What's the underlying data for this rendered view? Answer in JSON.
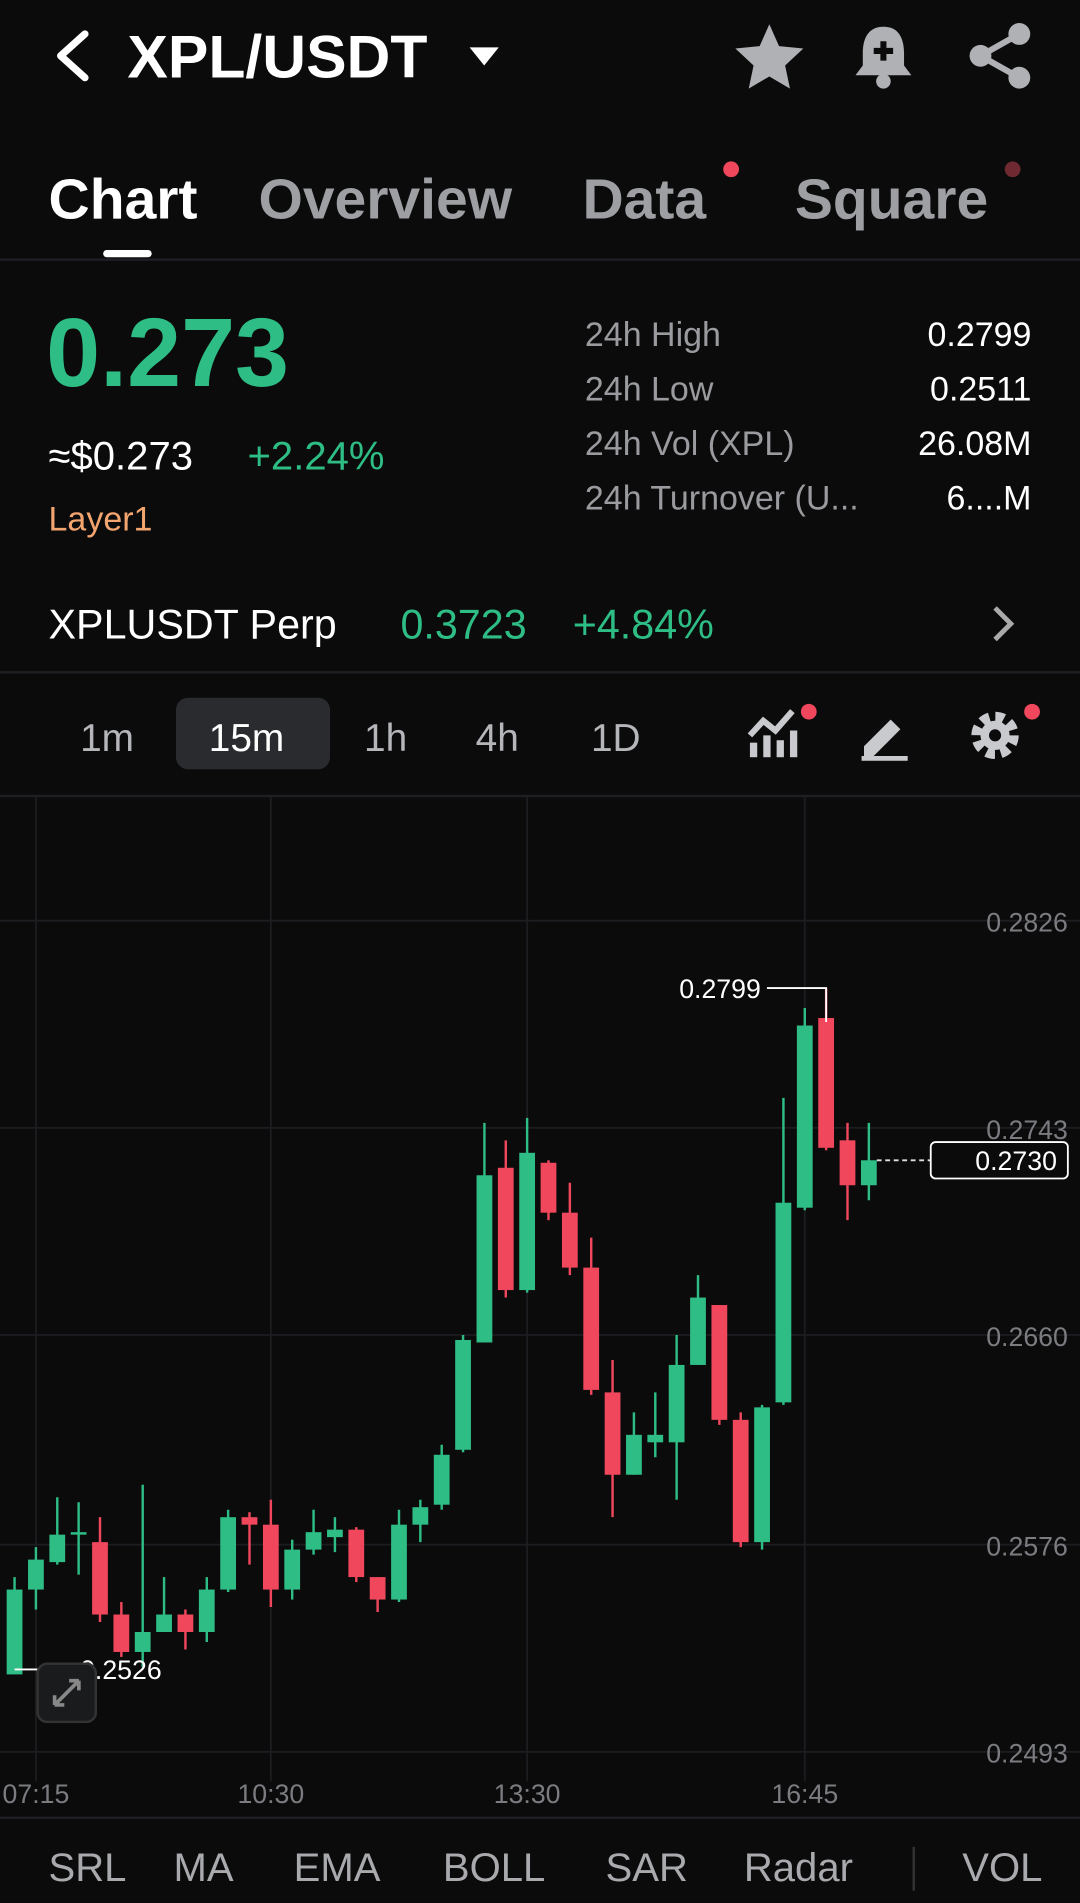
{
  "header": {
    "title": "XPL/USDT"
  },
  "tabs": [
    "Chart",
    "Overview",
    "Data",
    "Square"
  ],
  "ticker": {
    "price": "0.273",
    "usd_price": "≈$0.273",
    "change": "+2.24%",
    "tag": "Layer1",
    "stats": [
      [
        "24h High",
        "0.2799"
      ],
      [
        "24h Low",
        "0.2511"
      ],
      [
        "24h Vol (XPL)",
        "26.08M"
      ],
      [
        "24h Turnover (U...",
        "6....M"
      ]
    ]
  },
  "perp": {
    "name": "XPLUSDT Perp",
    "price": "0.3723",
    "change": "+4.84%"
  },
  "intervals": [
    "1m",
    "15m",
    "1h",
    "4h",
    "1D"
  ],
  "indicators": [
    "SRL",
    "MA",
    "EMA",
    "BOLL",
    "SAR",
    "Radar",
    "VOL"
  ],
  "chart_data": {
    "type": "candlestick",
    "categories": [
      null,
      "07:15",
      null,
      null,
      null,
      null,
      null,
      null,
      null,
      null,
      null,
      null,
      "10:30",
      null,
      null,
      null,
      null,
      null,
      null,
      null,
      null,
      null,
      null,
      null,
      "13:30",
      null,
      null,
      null,
      null,
      null,
      null,
      null,
      null,
      null,
      null,
      null,
      null,
      "16:45",
      null,
      null,
      null
    ],
    "open": [
      0.2524,
      0.2558,
      0.2569,
      0.258,
      0.2577,
      0.2548,
      0.2533,
      0.2541,
      0.2548,
      0.2541,
      0.2558,
      0.2587,
      0.2584,
      0.2558,
      0.2574,
      0.2579,
      0.2582,
      0.2563,
      0.2554,
      0.2584,
      0.2592,
      0.2614,
      0.2657,
      0.2727,
      0.2678,
      0.2729,
      0.2709,
      0.2687,
      0.2637,
      0.2604,
      0.2617,
      0.2617,
      0.2648,
      0.2672,
      0.2626,
      0.2577,
      0.2633,
      0.2711,
      0.2787,
      0.2738,
      0.272
    ],
    "high": [
      0.2563,
      0.2575,
      0.2595,
      0.2593,
      0.2587,
      0.2553,
      0.26,
      0.2563,
      0.255,
      0.2563,
      0.259,
      0.2589,
      0.2594,
      0.2578,
      0.259,
      0.2587,
      0.2583,
      0.2563,
      0.259,
      0.2594,
      0.2616,
      0.266,
      0.2745,
      0.2738,
      0.2747,
      0.273,
      0.2721,
      0.2699,
      0.265,
      0.2629,
      0.2637,
      0.266,
      0.2684,
      0.2672,
      0.2629,
      0.2632,
      0.2755,
      0.2791,
      0.2799,
      0.2745,
      0.2745
    ],
    "low": [
      0.2526,
      0.255,
      0.2568,
      0.2564,
      0.2545,
      0.2531,
      0.2527,
      0.2541,
      0.2534,
      0.2537,
      0.2557,
      0.2568,
      0.2551,
      0.2554,
      0.2572,
      0.2573,
      0.2561,
      0.2549,
      0.2553,
      0.2577,
      0.259,
      0.2613,
      0.2657,
      0.2675,
      0.2677,
      0.2706,
      0.2684,
      0.2636,
      0.2587,
      0.2604,
      0.2611,
      0.2594,
      0.2648,
      0.2624,
      0.2575,
      0.2574,
      0.2632,
      0.271,
      0.2734,
      0.2706,
      0.2714
    ],
    "close": [
      0.2558,
      0.257,
      0.258,
      0.2581,
      0.2548,
      0.2533,
      0.2541,
      0.2548,
      0.2541,
      0.2558,
      0.2587,
      0.2584,
      0.2558,
      0.2574,
      0.2581,
      0.2582,
      0.2563,
      0.2554,
      0.2584,
      0.2591,
      0.2612,
      0.2658,
      0.2724,
      0.2678,
      0.2733,
      0.2709,
      0.2687,
      0.2638,
      0.2604,
      0.262,
      0.262,
      0.2648,
      0.2675,
      0.2626,
      0.2577,
      0.2631,
      0.2713,
      0.2784,
      0.2735,
      0.272,
      0.273
    ],
    "up_color": "#2ebd85",
    "down_color": "#f0475c",
    "ylim": [
      0.2486,
      0.2874
    ],
    "yticks": [
      0.2826,
      0.2743,
      {
        "value": 0.266,
        "label": "0.2660"
      },
      0.2576,
      0.2493
    ],
    "grid": true,
    "high_label": 0.2799,
    "low_label": 0.2526,
    "last_price": {
      "value": 0.273,
      "label": "0.2730"
    }
  }
}
